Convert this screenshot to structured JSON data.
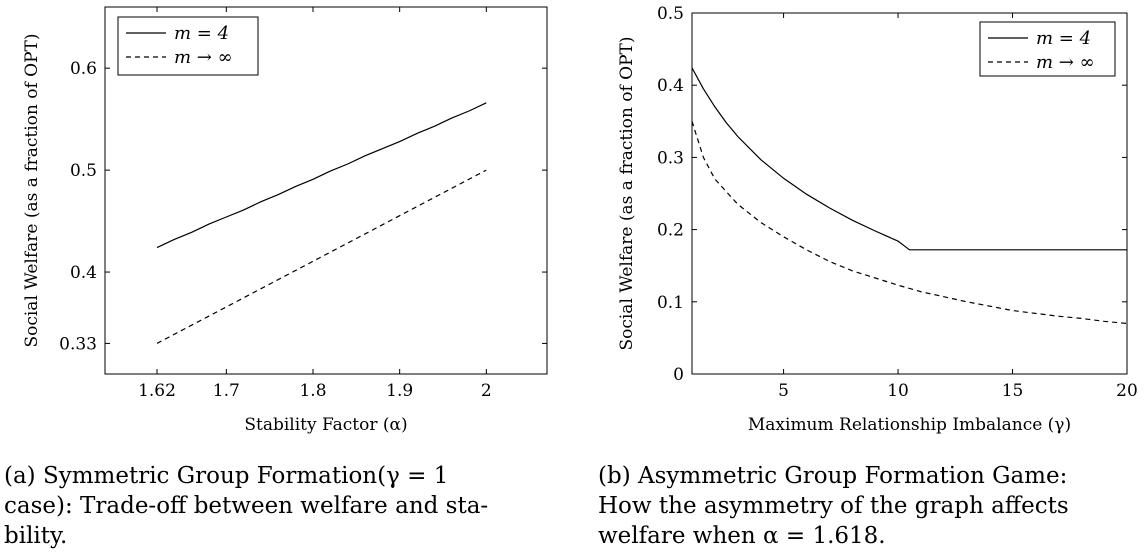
{
  "chart_data": [
    {
      "type": "line",
      "xlabel": "Stability Factor (α)",
      "ylabel": "Social Welfare (as a fraction of OPT)",
      "xlim": [
        1.56,
        2.07
      ],
      "ylim": [
        0.3,
        0.66
      ],
      "xticks": [
        1.62,
        1.7,
        1.8,
        1.9,
        2.0
      ],
      "xtick_labels": [
        "1.62",
        "1.7",
        "1.8",
        "1.9",
        "2"
      ],
      "yticks": [
        0.33,
        0.4,
        0.5,
        0.6
      ],
      "ytick_labels": [
        "0.33",
        "0.4",
        "0.5",
        "0.6"
      ],
      "legend_position": "top-left",
      "series": [
        {
          "name": "m = 4",
          "style": "solid",
          "x": [
            1.62,
            1.64,
            1.66,
            1.68,
            1.7,
            1.72,
            1.74,
            1.76,
            1.78,
            1.8,
            1.82,
            1.84,
            1.86,
            1.88,
            1.9,
            1.92,
            1.94,
            1.96,
            1.98,
            2.0
          ],
          "y": [
            0.424,
            0.432,
            0.439,
            0.447,
            0.454,
            0.461,
            0.469,
            0.476,
            0.484,
            0.491,
            0.499,
            0.506,
            0.514,
            0.521,
            0.528,
            0.536,
            0.543,
            0.551,
            0.558,
            0.566
          ]
        },
        {
          "name": "m → ∞",
          "style": "dashed",
          "x": [
            1.62,
            2.0
          ],
          "y": [
            0.33,
            0.5
          ]
        }
      ]
    },
    {
      "type": "line",
      "xlabel": "Maximum Relationship Imbalance (γ)",
      "ylabel": "Social Welfare (as a fraction of OPT)",
      "xlim": [
        1,
        20
      ],
      "ylim": [
        0,
        0.5
      ],
      "xticks": [
        5,
        10,
        15,
        20
      ],
      "xtick_labels": [
        "5",
        "10",
        "15",
        "20"
      ],
      "yticks": [
        0,
        0.1,
        0.2,
        0.3,
        0.4,
        0.5
      ],
      "ytick_labels": [
        "0",
        "0.1",
        "0.2",
        "0.3",
        "0.4",
        "0.5"
      ],
      "legend_position": "top-right",
      "series": [
        {
          "name": "m = 4",
          "style": "solid",
          "x": [
            1,
            1.5,
            2,
            2.5,
            3,
            4,
            5,
            6,
            7,
            8,
            9,
            10,
            10.5,
            11,
            12,
            14,
            16,
            18,
            20
          ],
          "y": [
            0.424,
            0.395,
            0.37,
            0.348,
            0.329,
            0.297,
            0.271,
            0.249,
            0.23,
            0.213,
            0.198,
            0.184,
            0.172,
            0.172,
            0.172,
            0.172,
            0.172,
            0.172,
            0.172
          ]
        },
        {
          "name": "m → ∞",
          "style": "dashed",
          "x": [
            1,
            1.5,
            2,
            3,
            4,
            5,
            6,
            7,
            8,
            9,
            10,
            11,
            12,
            13,
            14,
            15,
            16,
            17,
            18,
            19,
            20
          ],
          "y": [
            0.35,
            0.3,
            0.27,
            0.235,
            0.21,
            0.19,
            0.172,
            0.156,
            0.143,
            0.133,
            0.123,
            0.114,
            0.107,
            0.1,
            0.094,
            0.088,
            0.084,
            0.08,
            0.077,
            0.073,
            0.07
          ]
        }
      ]
    }
  ],
  "captions": {
    "a_line1": "(a) Symmetric Group Formation(γ  =  1",
    "a_line2": "case): Trade-off between welfare and sta-",
    "a_line3": "bility.",
    "b_line1": "(b) Asymmetric Group Formation Game:",
    "b_line2": "How the asymmetry of the graph affects",
    "b_line3": "welfare when α = 1.618."
  }
}
